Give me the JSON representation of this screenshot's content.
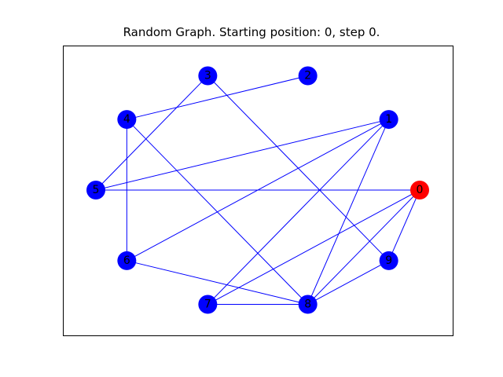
{
  "title": "Random Graph. Starting position: 0, step 0.",
  "colors": {
    "edge": "#0000ff",
    "node": "#0000ff",
    "current_node": "#ff0000",
    "frame": "#000000"
  },
  "graph": {
    "current": "0",
    "nodes": [
      "0",
      "1",
      "2",
      "3",
      "4",
      "5",
      "6",
      "7",
      "8",
      "9"
    ],
    "edges": [
      [
        "0",
        "5"
      ],
      [
        "0",
        "7"
      ],
      [
        "0",
        "8"
      ],
      [
        "0",
        "9"
      ],
      [
        "1",
        "5"
      ],
      [
        "1",
        "6"
      ],
      [
        "1",
        "7"
      ],
      [
        "1",
        "8"
      ],
      [
        "2",
        "4"
      ],
      [
        "3",
        "5"
      ],
      [
        "3",
        "9"
      ],
      [
        "4",
        "6"
      ],
      [
        "4",
        "8"
      ],
      [
        "6",
        "8"
      ],
      [
        "7",
        "8"
      ],
      [
        "8",
        "9"
      ]
    ]
  }
}
